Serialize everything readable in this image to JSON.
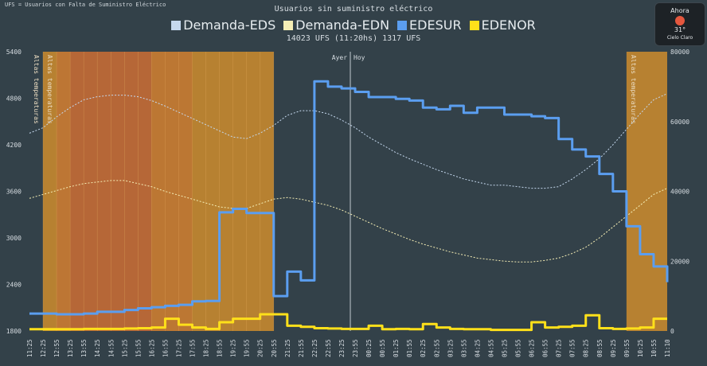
{
  "header_note": "UFS = Usuarios con Falta de Suministro Eléctrico",
  "title": "Usuarios sin suministro eléctrico",
  "subtitle": "14023 UFS (11:20hs) 1317 UFS",
  "legend": [
    {
      "label": "Demanda-EDS",
      "color": "#c5d8ee"
    },
    {
      "label": "Demanda-EDN",
      "color": "#f5eeb5"
    },
    {
      "label": "EDESUR",
      "color": "#5b9ef0"
    },
    {
      "label": "EDENOR",
      "color": "#ffe01a"
    }
  ],
  "weather": {
    "label": "Ahora",
    "temp": "31°",
    "condition": "Cielo Claro",
    "icon": "sun-icon",
    "icon_color": "#e4573e"
  },
  "chart_data": {
    "type": "line",
    "x_labels": [
      "11:25",
      "12:25",
      "12:55",
      "13:25",
      "13:55",
      "14:25",
      "14:55",
      "15:25",
      "15:55",
      "16:25",
      "16:55",
      "17:25",
      "17:55",
      "18:25",
      "18:55",
      "19:25",
      "19:55",
      "20:25",
      "20:55",
      "21:25",
      "21:55",
      "22:25",
      "22:55",
      "23:25",
      "23:55",
      "00:25",
      "00:55",
      "01:25",
      "01:55",
      "02:25",
      "02:55",
      "03:25",
      "03:55",
      "04:25",
      "04:55",
      "05:25",
      "05:55",
      "06:25",
      "06:55",
      "07:25",
      "07:55",
      "08:25",
      "08:55",
      "09:25",
      "09:55",
      "10:25",
      "10:55",
      "11:10"
    ],
    "y_left": {
      "ticks": [
        1800,
        2400,
        3000,
        3600,
        4200,
        4800,
        5400
      ],
      "range": [
        1800,
        5400
      ]
    },
    "y_right": {
      "ticks": [
        0,
        20000,
        40000,
        60000,
        80000
      ],
      "range": [
        0,
        80000
      ]
    },
    "day_markers": [
      {
        "label": "Ayer",
        "side": "left"
      },
      {
        "label": "Hoy",
        "side": "right"
      }
    ],
    "heat_label": "Altas temperaturas",
    "heat_bands": [
      {
        "start": "11:25",
        "end": "11:55"
      },
      {
        "start": "12:25",
        "end": "20:55"
      },
      {
        "start": "09:55",
        "end": "11:10"
      }
    ],
    "series": [
      {
        "name": "Demanda-EDS",
        "axis": "left",
        "style": "dashed",
        "color": "#c5d8ee",
        "values": [
          4350,
          4420,
          4560,
          4680,
          4780,
          4820,
          4840,
          4840,
          4820,
          4770,
          4700,
          4620,
          4540,
          4460,
          4380,
          4300,
          4280,
          4350,
          4450,
          4580,
          4640,
          4640,
          4600,
          4520,
          4420,
          4300,
          4200,
          4100,
          4020,
          3950,
          3880,
          3820,
          3760,
          3720,
          3680,
          3680,
          3660,
          3640,
          3640,
          3660,
          3760,
          3880,
          4020,
          4200,
          4400,
          4600,
          4780,
          4860
        ]
      },
      {
        "name": "Demanda-EDN",
        "axis": "left",
        "style": "dashed",
        "color": "#f5eeb5",
        "values": [
          3510,
          3560,
          3610,
          3660,
          3700,
          3720,
          3740,
          3740,
          3700,
          3660,
          3600,
          3550,
          3500,
          3450,
          3400,
          3380,
          3380,
          3440,
          3500,
          3520,
          3500,
          3460,
          3420,
          3360,
          3280,
          3200,
          3120,
          3050,
          2980,
          2920,
          2870,
          2820,
          2780,
          2740,
          2720,
          2700,
          2690,
          2690,
          2710,
          2740,
          2800,
          2880,
          3000,
          3140,
          3280,
          3420,
          3560,
          3640
        ]
      },
      {
        "name": "EDESUR",
        "axis": "right",
        "style": "step",
        "color": "#5b9ef0",
        "values": [
          5000,
          5000,
          4800,
          4800,
          5000,
          5500,
          5500,
          6000,
          6500,
          6800,
          7200,
          7500,
          8500,
          8600,
          34000,
          35000,
          33800,
          33800,
          10000,
          17000,
          14500,
          71500,
          70000,
          69500,
          68500,
          67000,
          67000,
          66500,
          66000,
          64000,
          63500,
          64500,
          62500,
          64000,
          64000,
          62000,
          62000,
          61500,
          61000,
          55000,
          52000,
          50000,
          45000,
          40000,
          30000,
          22000,
          18500,
          14000
        ]
      },
      {
        "name": "EDENOR",
        "axis": "right",
        "style": "step",
        "color": "#ffe01a",
        "values": [
          500,
          500,
          500,
          500,
          600,
          600,
          600,
          700,
          800,
          1000,
          3500,
          1800,
          1000,
          600,
          2500,
          3500,
          3500,
          4800,
          4800,
          1500,
          1200,
          800,
          700,
          600,
          600,
          1500,
          500,
          600,
          500,
          2000,
          1000,
          600,
          500,
          500,
          300,
          300,
          300,
          2500,
          1000,
          1200,
          1500,
          4500,
          800,
          600,
          700,
          1000,
          3500,
          3500
        ]
      }
    ]
  }
}
